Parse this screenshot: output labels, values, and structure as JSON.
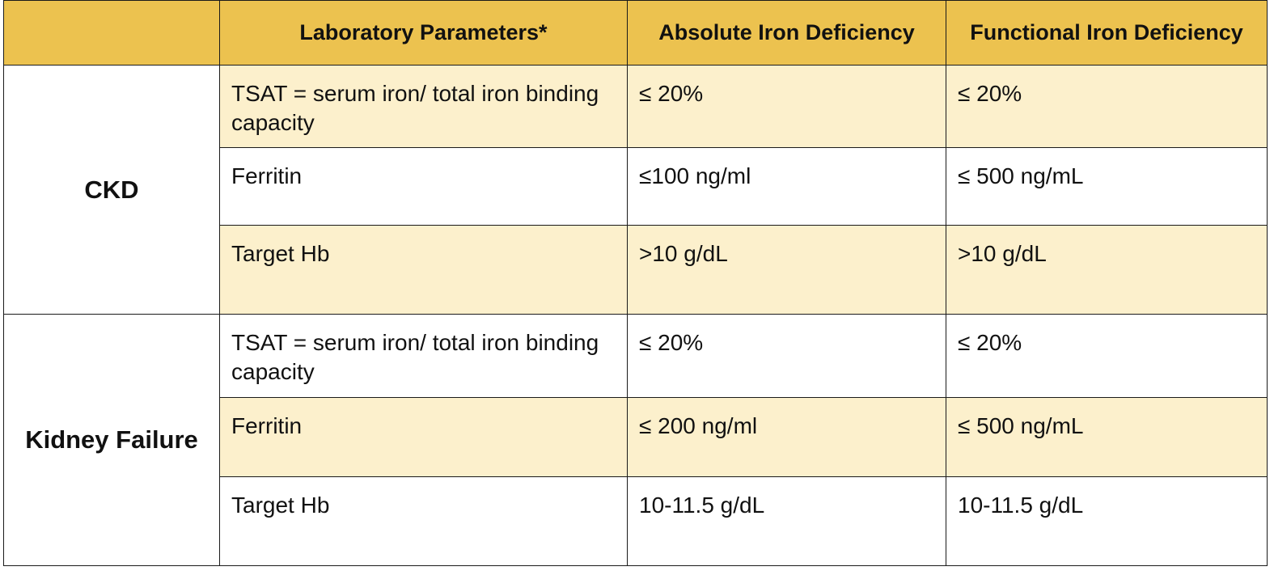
{
  "header": {
    "group": "",
    "parameters": "Laboratory Parameters*",
    "absolute": "Absolute Iron Deficiency",
    "functional": "Functional Iron Deficiency"
  },
  "groups": [
    {
      "name": "CKD",
      "rows": [
        {
          "parameter": "TSAT = serum iron/ total iron binding capacity",
          "absolute": "≤ 20%",
          "functional": "≤ 20%"
        },
        {
          "parameter": "Ferritin",
          "absolute": "≤100 ng/ml",
          "functional": "≤ 500 ng/mL"
        },
        {
          "parameter": "Target Hb",
          "absolute": ">10 g/dL",
          "functional": ">10 g/dL"
        }
      ]
    },
    {
      "name": "Kidney Failure",
      "rows": [
        {
          "parameter": "TSAT = serum iron/ total iron binding capacity",
          "absolute": "≤ 20%",
          "functional": "≤ 20%"
        },
        {
          "parameter": "Ferritin",
          "absolute": "≤ 200 ng/ml",
          "functional": "≤ 500 ng/mL"
        },
        {
          "parameter": "Target Hb",
          "absolute": "10-11.5 g/dL",
          "functional": "10-11.5 g/dL"
        }
      ]
    }
  ],
  "colors": {
    "header_bg": "#ecc24f",
    "row_shade": "#fcf0cc",
    "border": "#1a1a1a"
  }
}
